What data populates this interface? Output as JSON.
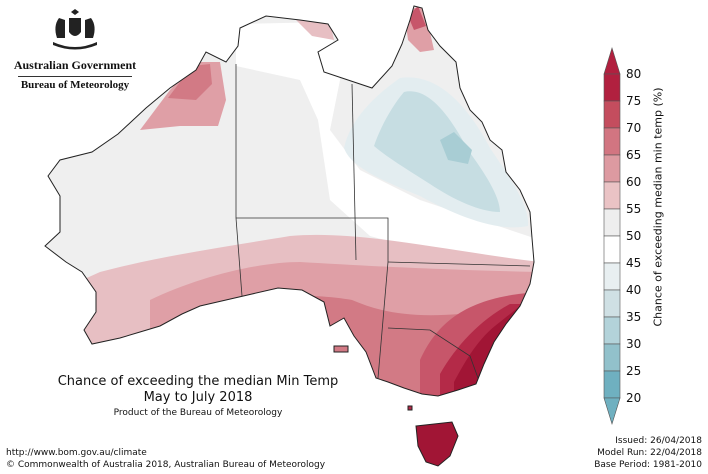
{
  "logo": {
    "government": "Australian Government",
    "bureau": "Bureau of Meteorology"
  },
  "caption": {
    "title": "Chance of exceeding the median Min Temp",
    "period": "May to July 2018",
    "product": "Product of the Bureau of Meteorology"
  },
  "footer": {
    "url": "http://www.bom.gov.au/climate",
    "copyright": "© Commonwealth of Australia 2018, Australian Bureau of Meteorology",
    "issued": "Issued: 26/04/2018",
    "model_run": "Model Run: 22/04/2018",
    "base_period": "Base Period: 1981-2010"
  },
  "legend": {
    "label": "Chance of exceeding median min temp (%)",
    "ticks": [
      "80",
      "75",
      "70",
      "65",
      "60",
      "55",
      "50",
      "45",
      "40",
      "35",
      "30",
      "25",
      "20"
    ],
    "colors": [
      "#b1203f",
      "#c44d5e",
      "#d27581",
      "#dd9aa1",
      "#eac3c5",
      "#eeeeee",
      "#ffffff",
      "#e8eff1",
      "#cfe0e4",
      "#b3d3da",
      "#92c1cb",
      "#6fb0c0"
    ]
  },
  "map_colors": {
    "neutral": "#efefef",
    "outline": "#222222",
    "border": "#333333",
    "p55_60": "#e7bfc3",
    "p60_65": "#df9fa6",
    "p65_70": "#d27a85",
    "p70_75": "#c7566a",
    "p75_80": "#b42a48",
    "p80": "#a11535",
    "c45_40": "#e3edf0",
    "c40_35": "#c6dde2",
    "c35_30": "#a8cdd4"
  }
}
